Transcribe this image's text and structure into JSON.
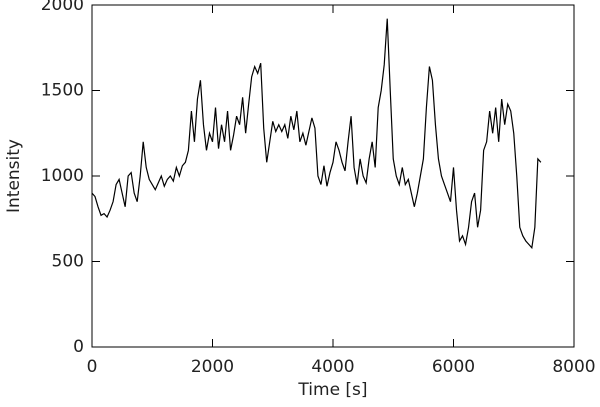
{
  "chart_data": {
    "type": "line",
    "x_label": "Time [s]",
    "y_label": "Intensity",
    "xlim": [
      0,
      8000
    ],
    "xticks": [
      0,
      2000,
      4000,
      6000,
      8000
    ],
    "ylim": [
      0,
      2000
    ],
    "yticks": [
      0,
      500,
      1000,
      1500,
      2000
    ],
    "color": "#000000",
    "x": [
      0,
      50,
      100,
      150,
      200,
      250,
      300,
      350,
      400,
      450,
      500,
      550,
      600,
      650,
      700,
      750,
      800,
      850,
      900,
      950,
      1000,
      1050,
      1100,
      1150,
      1200,
      1250,
      1300,
      1350,
      1400,
      1450,
      1500,
      1550,
      1600,
      1650,
      1700,
      1750,
      1800,
      1850,
      1900,
      1950,
      2000,
      2050,
      2100,
      2150,
      2200,
      2250,
      2300,
      2350,
      2400,
      2450,
      2500,
      2550,
      2600,
      2650,
      2700,
      2750,
      2800,
      2850,
      2900,
      2950,
      3000,
      3050,
      3100,
      3150,
      3200,
      3250,
      3300,
      3350,
      3400,
      3450,
      3500,
      3550,
      3600,
      3650,
      3700,
      3750,
      3800,
      3850,
      3900,
      3950,
      4000,
      4050,
      4100,
      4150,
      4200,
      4250,
      4300,
      4350,
      4400,
      4450,
      4500,
      4550,
      4600,
      4650,
      4700,
      4750,
      4800,
      4850,
      4900,
      4950,
      5000,
      5050,
      5100,
      5150,
      5200,
      5250,
      5300,
      5350,
      5400,
      5450,
      5500,
      5550,
      5600,
      5650,
      5700,
      5750,
      5800,
      5850,
      5900,
      5950,
      6000,
      6050,
      6100,
      6150,
      6200,
      6250,
      6300,
      6350,
      6400,
      6450,
      6500,
      6550,
      6600,
      6650,
      6700,
      6750,
      6800,
      6850,
      6900,
      6950,
      7000,
      7050,
      7100,
      7150,
      7200,
      7250,
      7300,
      7350,
      7400,
      7450
    ],
    "values": [
      900,
      880,
      820,
      770,
      780,
      760,
      800,
      850,
      950,
      980,
      900,
      820,
      1000,
      1020,
      900,
      850,
      1000,
      1200,
      1050,
      980,
      950,
      920,
      960,
      1000,
      940,
      980,
      1000,
      970,
      1050,
      1000,
      1060,
      1080,
      1150,
      1380,
      1200,
      1450,
      1560,
      1300,
      1150,
      1250,
      1200,
      1400,
      1160,
      1300,
      1200,
      1380,
      1150,
      1240,
      1350,
      1300,
      1460,
      1250,
      1420,
      1580,
      1640,
      1600,
      1660,
      1280,
      1080,
      1200,
      1320,
      1260,
      1300,
      1260,
      1300,
      1220,
      1350,
      1270,
      1380,
      1200,
      1250,
      1180,
      1260,
      1340,
      1280,
      1000,
      950,
      1060,
      940,
      1020,
      1080,
      1200,
      1150,
      1080,
      1030,
      1200,
      1350,
      1050,
      950,
      1100,
      1000,
      960,
      1100,
      1200,
      1050,
      1400,
      1500,
      1650,
      1920,
      1500,
      1100,
      1000,
      950,
      1050,
      950,
      980,
      900,
      820,
      900,
      1000,
      1100,
      1400,
      1640,
      1560,
      1300,
      1100,
      1000,
      950,
      900,
      850,
      1050,
      800,
      620,
      650,
      600,
      700,
      850,
      900,
      700,
      800,
      1150,
      1200,
      1380,
      1250,
      1400,
      1200,
      1450,
      1300,
      1420,
      1380,
      1250,
      1000,
      700,
      650,
      620,
      600,
      580,
      700,
      1100,
      1080
    ]
  }
}
